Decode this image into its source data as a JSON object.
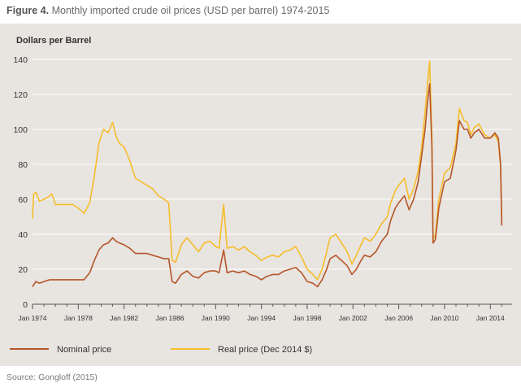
{
  "figure": {
    "number": "Figure 4.",
    "title": "Monthly imported crude oil prices (USD per barrel) 1974-2015",
    "source": "Source: Gongloff (2015)"
  },
  "colors": {
    "nominal": "#b5562a",
    "real": "#f5bd2a",
    "panel": "#e8e4e0",
    "grid": "#ffffff"
  },
  "chart_data": {
    "type": "line",
    "title": "Monthly imported crude oil prices (USD per barrel) 1974-2015",
    "ylabel": "Dollars per Barrel",
    "xlabel": "",
    "ylim": [
      0,
      140
    ],
    "xlim": [
      1974,
      2015.9
    ],
    "grid": true,
    "legend": "bottom",
    "yticks": [
      0,
      20,
      40,
      60,
      80,
      100,
      120,
      140
    ],
    "xticks": [
      "Jan 1974",
      "Jan 1978",
      "Jan 1982",
      "Jan 1986",
      "Jan 1990",
      "Jan 1994",
      "Jan 1998",
      "Jan 2002",
      "Jan 2006",
      "Jan 2010",
      "Jan 2014"
    ],
    "series": [
      {
        "name": "Nominal price",
        "x": [
          1974.0,
          1974.3,
          1974.6,
          1975.0,
          1975.5,
          1976.0,
          1976.5,
          1977.0,
          1977.5,
          1978.0,
          1978.5,
          1979.0,
          1979.4,
          1979.8,
          1980.2,
          1980.6,
          1981.0,
          1981.3,
          1981.6,
          1982.0,
          1982.5,
          1983.0,
          1983.5,
          1984.0,
          1984.5,
          1985.0,
          1985.5,
          1985.9,
          1986.2,
          1986.5,
          1987.0,
          1987.5,
          1988.0,
          1988.5,
          1989.0,
          1989.5,
          1990.0,
          1990.3,
          1990.7,
          1991.0,
          1991.5,
          1992.0,
          1992.5,
          1993.0,
          1993.5,
          1994.0,
          1994.5,
          1995.0,
          1995.5,
          1996.0,
          1996.5,
          1997.0,
          1997.5,
          1998.0,
          1998.5,
          1998.9,
          1999.3,
          1999.7,
          2000.0,
          2000.5,
          2001.0,
          2001.5,
          2001.9,
          2002.3,
          2002.7,
          2003.0,
          2003.5,
          2004.0,
          2004.5,
          2005.0,
          2005.3,
          2005.7,
          2006.0,
          2006.5,
          2006.9,
          2007.3,
          2007.7,
          2008.0,
          2008.3,
          2008.5,
          2008.7,
          2008.9,
          2009.0,
          2009.2,
          2009.5,
          2010.0,
          2010.5,
          2011.0,
          2011.3,
          2011.7,
          2012.0,
          2012.3,
          2012.6,
          2013.0,
          2013.5,
          2014.0,
          2014.4,
          2014.7,
          2014.9,
          2015.0
        ],
        "values": [
          10,
          13,
          12,
          13,
          14,
          14,
          14,
          14,
          14,
          14,
          14,
          18,
          25,
          31,
          34,
          35,
          38,
          36,
          35,
          34,
          32,
          29,
          29,
          29,
          28,
          27,
          26,
          26,
          13,
          12,
          17,
          19,
          16,
          15,
          18,
          19,
          19,
          18,
          31,
          18,
          19,
          18,
          19,
          17,
          16,
          14,
          16,
          17,
          17,
          19,
          20,
          21,
          18,
          13,
          12,
          10,
          14,
          20,
          26,
          28,
          25,
          22,
          17,
          20,
          25,
          28,
          27,
          30,
          36,
          40,
          48,
          55,
          58,
          62,
          54,
          60,
          70,
          85,
          100,
          115,
          126,
          90,
          35,
          37,
          55,
          70,
          72,
          88,
          105,
          100,
          100,
          95,
          98,
          100,
          95,
          95,
          98,
          95,
          80,
          45
        ]
      },
      {
        "name": "Real price (Dec 2014 $)",
        "x": [
          1974.0,
          1974.1,
          1974.3,
          1974.6,
          1975.0,
          1975.3,
          1975.7,
          1976.0,
          1976.5,
          1977.0,
          1977.5,
          1978.0,
          1978.5,
          1979.0,
          1979.4,
          1979.8,
          1980.2,
          1980.6,
          1981.0,
          1981.3,
          1981.6,
          1982.0,
          1982.5,
          1983.0,
          1983.5,
          1984.0,
          1984.5,
          1985.0,
          1985.5,
          1985.9,
          1986.2,
          1986.5,
          1987.0,
          1987.5,
          1988.0,
          1988.5,
          1989.0,
          1989.5,
          1990.0,
          1990.3,
          1990.7,
          1991.0,
          1991.5,
          1992.0,
          1992.5,
          1993.0,
          1993.5,
          1994.0,
          1994.5,
          1995.0,
          1995.5,
          1996.0,
          1996.5,
          1997.0,
          1997.5,
          1998.0,
          1998.5,
          1998.9,
          1999.3,
          1999.7,
          2000.0,
          2000.5,
          2001.0,
          2001.5,
          2001.9,
          2002.3,
          2002.7,
          2003.0,
          2003.5,
          2004.0,
          2004.5,
          2005.0,
          2005.3,
          2005.7,
          2006.0,
          2006.5,
          2006.9,
          2007.3,
          2007.7,
          2008.0,
          2008.3,
          2008.5,
          2008.7,
          2008.9,
          2009.0,
          2009.2,
          2009.5,
          2010.0,
          2010.5,
          2011.0,
          2011.3,
          2011.7,
          2012.0,
          2012.3,
          2012.6,
          2013.0,
          2013.5,
          2014.0,
          2014.4,
          2014.7,
          2014.9,
          2015.0
        ],
        "values": [
          49,
          63,
          64,
          59,
          60,
          61,
          63,
          57,
          57,
          57,
          57,
          55,
          52,
          58,
          73,
          92,
          100,
          98,
          104,
          96,
          92,
          90,
          82,
          72,
          70,
          68,
          66,
          62,
          60,
          58,
          25,
          24,
          34,
          38,
          34,
          30,
          35,
          36,
          33,
          32,
          57,
          32,
          33,
          31,
          33,
          30,
          28,
          25,
          27,
          28,
          27,
          30,
          31,
          33,
          27,
          20,
          17,
          14,
          20,
          30,
          38,
          40,
          35,
          30,
          23,
          28,
          34,
          38,
          36,
          40,
          46,
          50,
          58,
          65,
          68,
          72,
          60,
          66,
          76,
          90,
          110,
          125,
          139,
          95,
          37,
          40,
          60,
          75,
          78,
          92,
          112,
          105,
          104,
          97,
          101,
          103,
          97,
          95,
          97,
          93,
          78,
          47
        ]
      }
    ]
  }
}
